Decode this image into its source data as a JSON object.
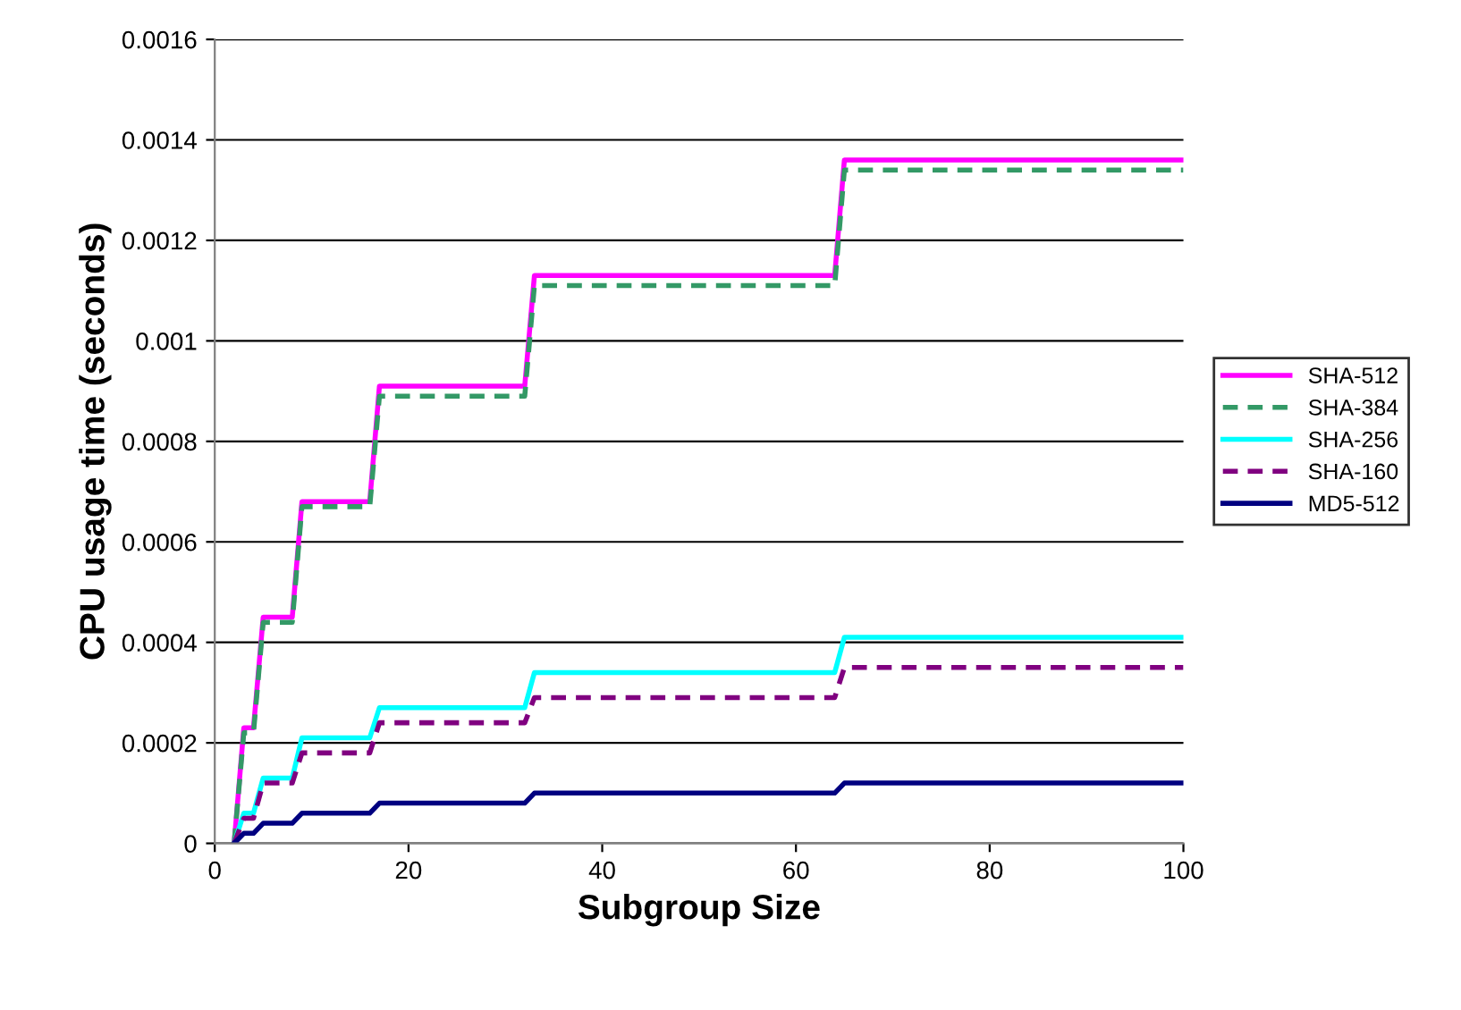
{
  "chart_data": {
    "type": "line",
    "xlabel": "Subgroup Size",
    "ylabel": "CPU usage time (seconds)",
    "x": [
      2,
      3,
      4,
      5,
      8,
      9,
      16,
      17,
      32,
      33,
      64,
      65,
      100
    ],
    "series": [
      {
        "name": "SHA-512",
        "color": "#ff00ff",
        "line_style": "solid",
        "values": [
          0,
          0.00023,
          0.00023,
          0.00045,
          0.00045,
          0.00068,
          0.00068,
          0.00091,
          0.00091,
          0.00113,
          0.00113,
          0.00136,
          0.00136
        ]
      },
      {
        "name": "SHA-384",
        "color": "#339966",
        "line_style": "dashed",
        "values": [
          0,
          0.00022,
          0.00022,
          0.00044,
          0.00044,
          0.00067,
          0.00067,
          0.00089,
          0.00089,
          0.00111,
          0.00111,
          0.00134,
          0.00134
        ]
      },
      {
        "name": "SHA-256",
        "color": "#00ffff",
        "line_style": "solid",
        "values": [
          0,
          6e-05,
          6e-05,
          0.00013,
          0.00013,
          0.00021,
          0.00021,
          0.00027,
          0.00027,
          0.00034,
          0.00034,
          0.00041,
          0.00041
        ]
      },
      {
        "name": "SHA-160",
        "color": "#800080",
        "line_style": "dashed",
        "values": [
          0,
          5e-05,
          5e-05,
          0.00012,
          0.00012,
          0.00018,
          0.00018,
          0.00024,
          0.00024,
          0.00029,
          0.00029,
          0.00035,
          0.00035
        ]
      },
      {
        "name": "MD5-512",
        "color": "#000080",
        "line_style": "solid",
        "values": [
          0,
          2e-05,
          2e-05,
          4e-05,
          4e-05,
          6e-05,
          6e-05,
          8e-05,
          8e-05,
          0.0001,
          0.0001,
          0.00012,
          0.00012
        ]
      }
    ],
    "xlim": [
      0,
      100
    ],
    "xticks": [
      0,
      20,
      40,
      60,
      80,
      100
    ],
    "ylim": [
      0,
      0.0016
    ],
    "yticks": [
      0,
      0.0002,
      0.0004,
      0.0006,
      0.0008,
      0.001,
      0.0012,
      0.0014,
      0.0016
    ],
    "grid": "y",
    "legend": "right",
    "marker": "none"
  }
}
